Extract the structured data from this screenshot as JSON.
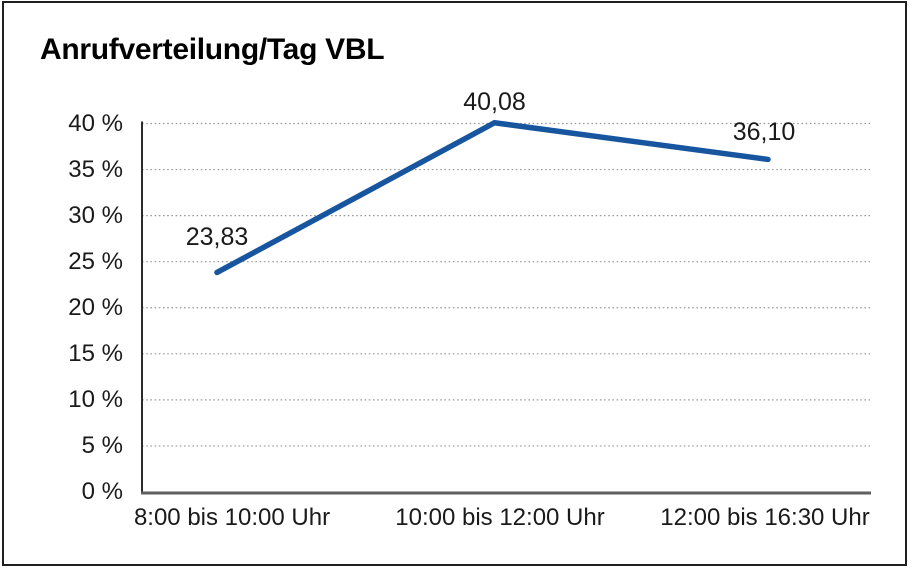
{
  "chart_data": {
    "type": "line",
    "title": "Anrufverteilung/Tag VBL",
    "categories": [
      "8:00 bis 10:00 Uhr",
      "10:00 bis 12:00 Uhr",
      "12:00 bis 16:30 Uhr"
    ],
    "series": [
      {
        "name": "Anrufverteilung",
        "values": [
          23.83,
          40.08,
          36.1
        ]
      }
    ],
    "point_labels": [
      "23,83",
      "40,08",
      "36,10"
    ],
    "ylabel": "",
    "xlabel": "",
    "ylim": [
      0,
      40
    ],
    "ytick_step": 5,
    "ytick_labels": [
      "0 %",
      "5 %",
      "10 %",
      "15 %",
      "20 %",
      "25 %",
      "30 %",
      "35 %",
      "40 %"
    ],
    "grid": "horizontal-dotted",
    "legend": "none",
    "colors": {
      "line": "#17569E",
      "gridline": "#999999",
      "y_axis": "#2b2b2b",
      "x_axis": "#5f5f5f",
      "border": "#1f1f1f",
      "text": "#1a1a1a"
    }
  }
}
